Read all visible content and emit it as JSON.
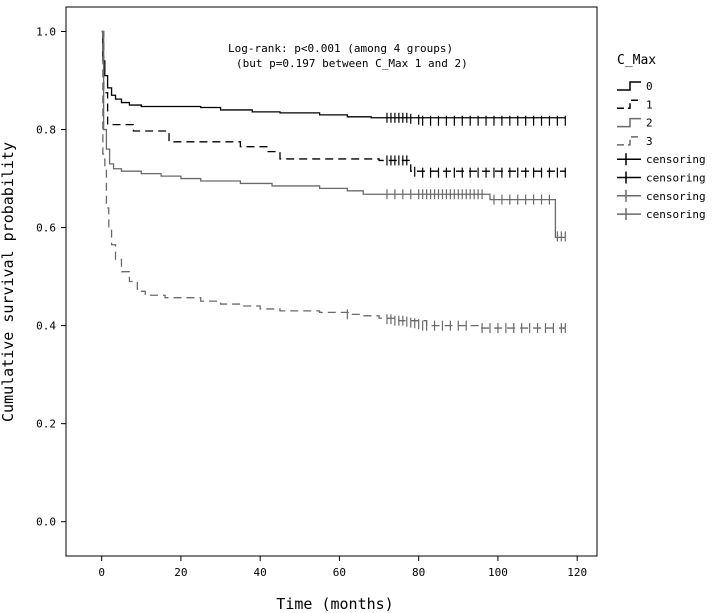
{
  "chart_data": {
    "type": "line",
    "title": "",
    "xlabel": "Time (months)",
    "ylabel": "Cumulative survival probability",
    "xlim": [
      -9,
      125
    ],
    "ylim": [
      -0.07,
      1.05
    ],
    "x_ticks": [
      0,
      20,
      40,
      60,
      80,
      100,
      120
    ],
    "x_tick_labels": [
      "0",
      "20",
      "40",
      "60",
      "80",
      "100",
      "120"
    ],
    "y_ticks": [
      0.0,
      0.2,
      0.4,
      0.6,
      0.8,
      1.0
    ],
    "y_tick_labels": [
      "0.0",
      "0.2",
      "0.4",
      "0.6",
      "0.8",
      "1.0"
    ],
    "grid": false,
    "annotation": [
      "Log-rank: p<0.001 (among 4 groups)",
      "(but p=0.197 between C_Max 1 and 2)"
    ],
    "legend": {
      "title": "C_Max",
      "placement": "right",
      "entries": [
        {
          "label": "0",
          "kind": "line",
          "color": "#000000",
          "dash": "solid"
        },
        {
          "label": "1",
          "kind": "line",
          "color": "#000000",
          "dash": "dashed"
        },
        {
          "label": "2",
          "kind": "line",
          "color": "#6a6a6a",
          "dash": "solid"
        },
        {
          "label": "3",
          "kind": "line",
          "color": "#6a6a6a",
          "dash": "dashed"
        },
        {
          "label": "censoring",
          "kind": "censor",
          "color": "#000000"
        },
        {
          "label": "censoring",
          "kind": "censor",
          "color": "#000000"
        },
        {
          "label": "censoring",
          "kind": "censor",
          "color": "#6a6a6a"
        },
        {
          "label": "censoring",
          "kind": "censor",
          "color": "#6a6a6a"
        }
      ]
    },
    "series": [
      {
        "name": "0",
        "color": "#000000",
        "dash": "solid",
        "steps": [
          [
            0,
            1.0
          ],
          [
            0.3,
            0.94
          ],
          [
            0.8,
            0.91
          ],
          [
            1.5,
            0.885
          ],
          [
            2.5,
            0.87
          ],
          [
            3.5,
            0.862
          ],
          [
            5,
            0.855
          ],
          [
            7,
            0.85
          ],
          [
            10,
            0.847
          ],
          [
            25,
            0.845
          ],
          [
            30,
            0.84
          ],
          [
            38,
            0.836
          ],
          [
            45,
            0.834
          ],
          [
            55,
            0.83
          ],
          [
            62,
            0.826
          ],
          [
            68,
            0.824
          ],
          [
            117,
            0.824
          ]
        ],
        "censored": [
          [
            72,
            0.824
          ],
          [
            73,
            0.824
          ],
          [
            74,
            0.824
          ],
          [
            75,
            0.824
          ],
          [
            76,
            0.824
          ],
          [
            77,
            0.824
          ],
          [
            78,
            0.822
          ],
          [
            80,
            0.82
          ],
          [
            81,
            0.818
          ],
          [
            83,
            0.818
          ],
          [
            85,
            0.818
          ],
          [
            87,
            0.818
          ],
          [
            89,
            0.818
          ],
          [
            91,
            0.818
          ],
          [
            93,
            0.818
          ],
          [
            95,
            0.818
          ],
          [
            97,
            0.818
          ],
          [
            99,
            0.818
          ],
          [
            101,
            0.818
          ],
          [
            103,
            0.818
          ],
          [
            105,
            0.818
          ],
          [
            107,
            0.818
          ],
          [
            109,
            0.818
          ],
          [
            111,
            0.818
          ],
          [
            113,
            0.818
          ],
          [
            115,
            0.818
          ],
          [
            117,
            0.818
          ]
        ]
      },
      {
        "name": "1",
        "color": "#000000",
        "dash": "dashed",
        "steps": [
          [
            0,
            1.0
          ],
          [
            0.5,
            0.875
          ],
          [
            1.5,
            0.81
          ],
          [
            8,
            0.797
          ],
          [
            17,
            0.775
          ],
          [
            35,
            0.765
          ],
          [
            42,
            0.755
          ],
          [
            45,
            0.74
          ],
          [
            70,
            0.737
          ],
          [
            78,
            0.715
          ],
          [
            117,
            0.713
          ]
        ],
        "censored": [
          [
            72,
            0.737
          ],
          [
            73,
            0.737
          ],
          [
            74,
            0.737
          ],
          [
            75,
            0.737
          ],
          [
            76,
            0.737
          ],
          [
            77,
            0.737
          ],
          [
            79,
            0.714
          ],
          [
            81,
            0.712
          ],
          [
            83,
            0.712
          ],
          [
            85,
            0.712
          ],
          [
            87,
            0.712
          ],
          [
            89,
            0.712
          ],
          [
            91,
            0.712
          ],
          [
            93,
            0.712
          ],
          [
            95,
            0.712
          ],
          [
            97,
            0.712
          ],
          [
            99,
            0.712
          ],
          [
            101,
            0.712
          ],
          [
            103,
            0.712
          ],
          [
            105,
            0.712
          ],
          [
            107,
            0.712
          ],
          [
            109,
            0.712
          ],
          [
            111,
            0.712
          ],
          [
            113,
            0.712
          ],
          [
            115,
            0.712
          ],
          [
            117,
            0.712
          ]
        ]
      },
      {
        "name": "2",
        "color": "#6a6a6a",
        "dash": "solid",
        "steps": [
          [
            0,
            1.0
          ],
          [
            0.5,
            0.8
          ],
          [
            1.2,
            0.76
          ],
          [
            2,
            0.73
          ],
          [
            3,
            0.72
          ],
          [
            5,
            0.715
          ],
          [
            10,
            0.71
          ],
          [
            15,
            0.705
          ],
          [
            20,
            0.7
          ],
          [
            25,
            0.695
          ],
          [
            35,
            0.69
          ],
          [
            43,
            0.685
          ],
          [
            55,
            0.68
          ],
          [
            62,
            0.675
          ],
          [
            66,
            0.668
          ],
          [
            98,
            0.657
          ],
          [
            114.5,
            0.58
          ],
          [
            117,
            0.58
          ]
        ],
        "censored": [
          [
            72,
            0.668
          ],
          [
            74,
            0.668
          ],
          [
            76,
            0.668
          ],
          [
            78,
            0.668
          ],
          [
            80,
            0.668
          ],
          [
            81,
            0.668
          ],
          [
            82,
            0.668
          ],
          [
            83,
            0.668
          ],
          [
            84,
            0.668
          ],
          [
            85,
            0.668
          ],
          [
            86,
            0.668
          ],
          [
            87,
            0.668
          ],
          [
            88,
            0.668
          ],
          [
            89,
            0.668
          ],
          [
            90,
            0.668
          ],
          [
            91,
            0.668
          ],
          [
            92,
            0.668
          ],
          [
            93,
            0.668
          ],
          [
            94,
            0.668
          ],
          [
            95,
            0.668
          ],
          [
            96,
            0.668
          ],
          [
            99,
            0.657
          ],
          [
            101,
            0.657
          ],
          [
            103,
            0.657
          ],
          [
            105,
            0.657
          ],
          [
            107,
            0.657
          ],
          [
            109,
            0.657
          ],
          [
            111,
            0.657
          ],
          [
            113,
            0.657
          ],
          [
            115,
            0.582
          ],
          [
            116,
            0.582
          ],
          [
            117,
            0.582
          ]
        ]
      },
      {
        "name": "3",
        "color": "#6a6a6a",
        "dash": "dashed",
        "steps": [
          [
            0,
            1.0
          ],
          [
            0.3,
            0.75
          ],
          [
            0.8,
            0.72
          ],
          [
            1.2,
            0.64
          ],
          [
            1.8,
            0.6
          ],
          [
            2.5,
            0.565
          ],
          [
            3.5,
            0.535
          ],
          [
            5,
            0.51
          ],
          [
            7,
            0.49
          ],
          [
            9,
            0.47
          ],
          [
            11,
            0.462
          ],
          [
            16,
            0.457
          ],
          [
            25,
            0.45
          ],
          [
            30,
            0.444
          ],
          [
            35,
            0.44
          ],
          [
            40,
            0.434
          ],
          [
            45,
            0.43
          ],
          [
            55,
            0.427
          ],
          [
            63,
            0.423
          ],
          [
            65,
            0.42
          ],
          [
            70,
            0.415
          ],
          [
            75,
            0.41
          ],
          [
            82,
            0.4
          ],
          [
            95,
            0.395
          ],
          [
            117,
            0.395
          ]
        ],
        "censored": [
          [
            62,
            0.423
          ],
          [
            72,
            0.413
          ],
          [
            73,
            0.413
          ],
          [
            74,
            0.41
          ],
          [
            75,
            0.41
          ],
          [
            76,
            0.41
          ],
          [
            77,
            0.408
          ],
          [
            78,
            0.406
          ],
          [
            79,
            0.405
          ],
          [
            80,
            0.403
          ],
          [
            81,
            0.4
          ],
          [
            82,
            0.4
          ],
          [
            84,
            0.4
          ],
          [
            86,
            0.4
          ],
          [
            88,
            0.4
          ],
          [
            90,
            0.4
          ],
          [
            92,
            0.4
          ],
          [
            96,
            0.395
          ],
          [
            98,
            0.395
          ],
          [
            100,
            0.395
          ],
          [
            102,
            0.395
          ],
          [
            104,
            0.395
          ],
          [
            106,
            0.395
          ],
          [
            108,
            0.395
          ],
          [
            110,
            0.395
          ],
          [
            112,
            0.395
          ],
          [
            114,
            0.395
          ],
          [
            116,
            0.395
          ],
          [
            117,
            0.395
          ]
        ]
      }
    ]
  }
}
